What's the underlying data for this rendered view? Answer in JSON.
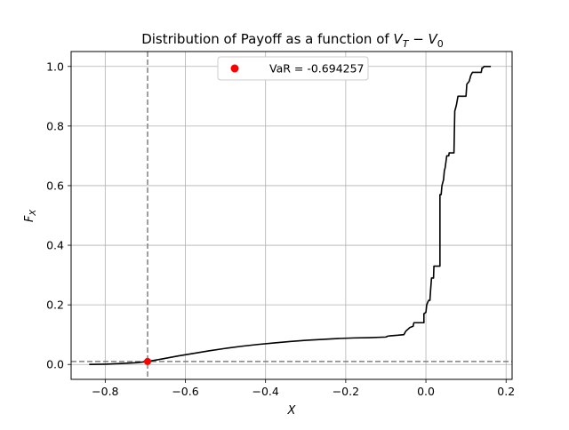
{
  "chart_data": {
    "type": "line",
    "title": "Distribution of Payoff as a function of V_T − V_0",
    "title_main": "Distribution of Payoff as a function of ",
    "title_var1": "V",
    "title_sub1": "T",
    "title_minus": " − ",
    "title_var2": "V",
    "title_sub2": "0",
    "xlabel": "X",
    "ylabel_var": "F",
    "ylabel_sub": "X",
    "xlim": [
      -0.885,
      0.215
    ],
    "ylim": [
      -0.05,
      1.05
    ],
    "grid": true,
    "legend_position": "top-center",
    "xticks": [
      -0.8,
      -0.6,
      -0.4,
      -0.2,
      0.0,
      0.2
    ],
    "xtick_labels": [
      "−0.8",
      "−0.6",
      "−0.4",
      "−0.2",
      "0.0",
      "0.2"
    ],
    "yticks": [
      0.0,
      0.2,
      0.4,
      0.6,
      0.8,
      1.0
    ],
    "ytick_labels": [
      "0.0",
      "0.2",
      "0.4",
      "0.6",
      "0.8",
      "1.0"
    ],
    "colors": {
      "curve": "#000000",
      "var_point": "#ff0000",
      "reference_lines": "#808080",
      "grid": "#b0b0b0"
    },
    "series": [
      {
        "points": [
          [
            -0.84,
            0.0
          ],
          [
            -0.8,
            0.001
          ],
          [
            -0.76,
            0.003
          ],
          [
            -0.72,
            0.006
          ],
          [
            -0.694257,
            0.01
          ],
          [
            -0.66,
            0.018
          ],
          [
            -0.62,
            0.028
          ],
          [
            -0.58,
            0.037
          ],
          [
            -0.54,
            0.046
          ],
          [
            -0.5,
            0.054
          ],
          [
            -0.46,
            0.061
          ],
          [
            -0.42,
            0.067
          ],
          [
            -0.38,
            0.072
          ],
          [
            -0.34,
            0.077
          ],
          [
            -0.3,
            0.081
          ],
          [
            -0.26,
            0.084
          ],
          [
            -0.22,
            0.087
          ],
          [
            -0.18,
            0.089
          ],
          [
            -0.14,
            0.09
          ],
          [
            -0.1,
            0.092
          ],
          [
            -0.095,
            0.095
          ],
          [
            -0.09,
            0.096
          ],
          [
            -0.07,
            0.098
          ],
          [
            -0.055,
            0.1
          ],
          [
            -0.05,
            0.112
          ],
          [
            -0.04,
            0.124
          ],
          [
            -0.032,
            0.128
          ],
          [
            -0.03,
            0.14
          ],
          [
            -0.005,
            0.14
          ],
          [
            -0.005,
            0.17
          ],
          [
            0.0,
            0.175
          ],
          [
            0.002,
            0.2
          ],
          [
            0.005,
            0.21
          ],
          [
            0.007,
            0.215
          ],
          [
            0.01,
            0.215
          ],
          [
            0.012,
            0.255
          ],
          [
            0.014,
            0.29
          ],
          [
            0.019,
            0.29
          ],
          [
            0.02,
            0.33
          ],
          [
            0.035,
            0.33
          ],
          [
            0.035,
            0.57
          ],
          [
            0.038,
            0.57
          ],
          [
            0.04,
            0.6
          ],
          [
            0.044,
            0.62
          ],
          [
            0.046,
            0.65
          ],
          [
            0.048,
            0.66
          ],
          [
            0.052,
            0.7
          ],
          [
            0.057,
            0.7
          ],
          [
            0.058,
            0.71
          ],
          [
            0.07,
            0.71
          ],
          [
            0.072,
            0.85
          ],
          [
            0.074,
            0.86
          ],
          [
            0.076,
            0.87
          ],
          [
            0.08,
            0.9
          ],
          [
            0.1,
            0.9
          ],
          [
            0.102,
            0.94
          ],
          [
            0.108,
            0.95
          ],
          [
            0.112,
            0.97
          ],
          [
            0.116,
            0.98
          ],
          [
            0.138,
            0.98
          ],
          [
            0.14,
            0.995
          ],
          [
            0.142,
            0.995
          ],
          [
            0.145,
            1.0
          ],
          [
            0.162,
            1.0
          ]
        ]
      }
    ],
    "var_point": {
      "x": -0.694257,
      "y": 0.01
    },
    "reference_lines": {
      "vertical_x": -0.694257,
      "horizontal_y": 0.01
    },
    "legend": [
      {
        "label": "VaR = -0.694257",
        "marker": "circle"
      }
    ]
  }
}
